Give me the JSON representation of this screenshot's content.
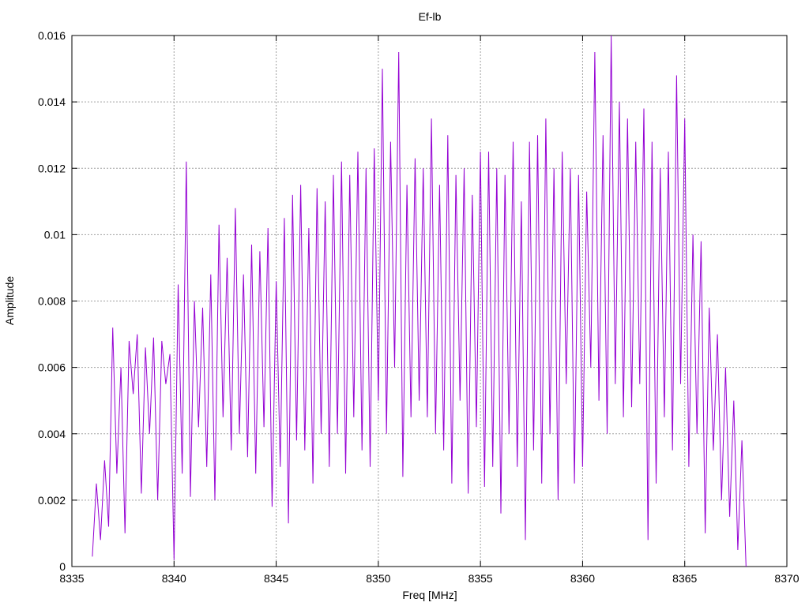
{
  "chart_data": {
    "type": "line",
    "title": "Ef-lb",
    "xlabel": "Freq [MHz]",
    "ylabel": "Amplitude",
    "xlim": [
      8335,
      8370
    ],
    "ylim": [
      0,
      0.016
    ],
    "x_ticks": [
      8335,
      8340,
      8345,
      8350,
      8355,
      8360,
      8365,
      8370
    ],
    "y_ticks": [
      0,
      0.002,
      0.004,
      0.006,
      0.008,
      0.01,
      0.012,
      0.014,
      0.016
    ],
    "x_tick_labels": [
      "8335",
      "8340",
      "8345",
      "8350",
      "8355",
      "8360",
      "8365",
      "8370"
    ],
    "y_tick_labels": [
      "0",
      "0.002",
      "0.004",
      "0.006",
      "0.008",
      "0.01",
      "0.012",
      "0.014",
      "0.016"
    ],
    "grid": true,
    "legend": "none",
    "series": [
      {
        "color": "#9400d3",
        "x": [
          8336.0,
          8336.2,
          8336.4,
          8336.6,
          8336.8,
          8337.0,
          8337.2,
          8337.4,
          8337.6,
          8337.8,
          8338.0,
          8338.2,
          8338.4,
          8338.6,
          8338.8,
          8339.0,
          8339.2,
          8339.4,
          8339.6,
          8339.8,
          8340.0,
          8340.2,
          8340.4,
          8340.6,
          8340.8,
          8341.0,
          8341.2,
          8341.4,
          8341.6,
          8341.8,
          8342.0,
          8342.2,
          8342.4,
          8342.6,
          8342.8,
          8343.0,
          8343.2,
          8343.4,
          8343.6,
          8343.8,
          8344.0,
          8344.2,
          8344.4,
          8344.6,
          8344.8,
          8345.0,
          8345.2,
          8345.4,
          8345.6,
          8345.8,
          8346.0,
          8346.2,
          8346.4,
          8346.6,
          8346.8,
          8347.0,
          8347.2,
          8347.4,
          8347.6,
          8347.8,
          8348.0,
          8348.2,
          8348.4,
          8348.6,
          8348.8,
          8349.0,
          8349.2,
          8349.4,
          8349.6,
          8349.8,
          8350.0,
          8350.2,
          8350.4,
          8350.6,
          8350.8,
          8351.0,
          8351.2,
          8351.4,
          8351.6,
          8351.8,
          8352.0,
          8352.2,
          8352.4,
          8352.6,
          8352.8,
          8353.0,
          8353.2,
          8353.4,
          8353.6,
          8353.8,
          8354.0,
          8354.2,
          8354.4,
          8354.6,
          8354.8,
          8355.0,
          8355.2,
          8355.4,
          8355.6,
          8355.8,
          8356.0,
          8356.2,
          8356.4,
          8356.6,
          8356.8,
          8357.0,
          8357.2,
          8357.4,
          8357.6,
          8357.8,
          8358.0,
          8358.2,
          8358.4,
          8358.6,
          8358.8,
          8359.0,
          8359.2,
          8359.4,
          8359.6,
          8359.8,
          8360.0,
          8360.2,
          8360.4,
          8360.6,
          8360.8,
          8361.0,
          8361.2,
          8361.4,
          8361.6,
          8361.8,
          8362.0,
          8362.2,
          8362.4,
          8362.6,
          8362.8,
          8363.0,
          8363.2,
          8363.4,
          8363.6,
          8363.8,
          8364.0,
          8364.2,
          8364.4,
          8364.6,
          8364.8,
          8365.0,
          8365.2,
          8365.4,
          8365.6,
          8365.8,
          8366.0,
          8366.2,
          8366.4,
          8366.6,
          8366.8,
          8367.0,
          8367.2,
          8367.4,
          8367.6,
          8367.8,
          8368.0
        ],
        "y": [
          0.0003,
          0.0025,
          0.0008,
          0.0032,
          0.0012,
          0.0072,
          0.0028,
          0.006,
          0.001,
          0.0068,
          0.0052,
          0.007,
          0.0022,
          0.0066,
          0.004,
          0.0069,
          0.002,
          0.0068,
          0.0055,
          0.0064,
          0.0002,
          0.0085,
          0.0028,
          0.0122,
          0.0021,
          0.008,
          0.0042,
          0.0078,
          0.003,
          0.0088,
          0.002,
          0.0103,
          0.0045,
          0.0093,
          0.0035,
          0.0108,
          0.004,
          0.0088,
          0.0033,
          0.0097,
          0.0028,
          0.0095,
          0.0042,
          0.0102,
          0.0018,
          0.0086,
          0.003,
          0.0105,
          0.0013,
          0.0112,
          0.0038,
          0.0115,
          0.0035,
          0.0102,
          0.0025,
          0.0114,
          0.004,
          0.011,
          0.003,
          0.0118,
          0.004,
          0.0122,
          0.0028,
          0.0118,
          0.0045,
          0.0125,
          0.0035,
          0.012,
          0.003,
          0.0126,
          0.005,
          0.015,
          0.004,
          0.0128,
          0.006,
          0.0155,
          0.0027,
          0.0115,
          0.0045,
          0.0123,
          0.005,
          0.012,
          0.0045,
          0.0135,
          0.004,
          0.0115,
          0.0035,
          0.013,
          0.0025,
          0.0118,
          0.005,
          0.012,
          0.0022,
          0.0112,
          0.0042,
          0.0125,
          0.0024,
          0.0125,
          0.003,
          0.012,
          0.0016,
          0.0118,
          0.004,
          0.0128,
          0.003,
          0.011,
          0.0008,
          0.0128,
          0.0035,
          0.013,
          0.0025,
          0.0135,
          0.004,
          0.012,
          0.002,
          0.0125,
          0.0055,
          0.012,
          0.0025,
          0.0118,
          0.003,
          0.0113,
          0.006,
          0.0155,
          0.005,
          0.013,
          0.004,
          0.016,
          0.0055,
          0.014,
          0.0045,
          0.0135,
          0.0048,
          0.0128,
          0.0055,
          0.0138,
          0.0008,
          0.0128,
          0.0025,
          0.012,
          0.0045,
          0.0125,
          0.0035,
          0.0148,
          0.0055,
          0.0135,
          0.003,
          0.01,
          0.004,
          0.0098,
          0.001,
          0.0078,
          0.0035,
          0.007,
          0.002,
          0.006,
          0.0015,
          0.005,
          0.0005,
          0.0038,
          0.0
        ]
      }
    ]
  }
}
